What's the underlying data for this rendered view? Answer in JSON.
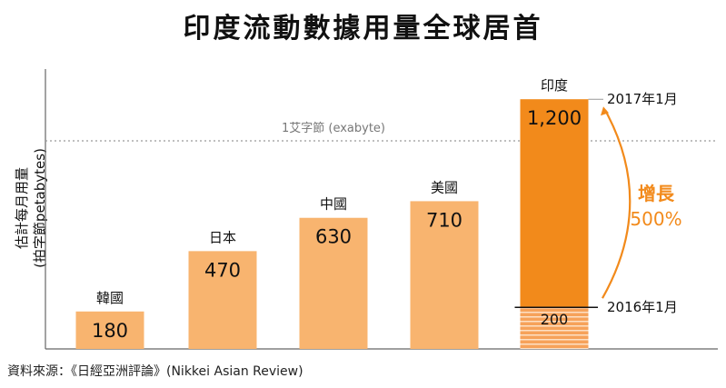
{
  "chart_data": {
    "type": "bar",
    "title": "印度流動數據用量全球居首",
    "ylabel_line1": "估計每月用量",
    "ylabel_line2": "(拍字節petabytes)",
    "xlabel": "",
    "categories": [
      "韓國",
      "日本",
      "中國",
      "美國",
      "印度"
    ],
    "values": [
      180,
      470,
      630,
      710,
      1200
    ],
    "value_labels": [
      "180",
      "470",
      "630",
      "710",
      "1,200"
    ],
    "ylim": [
      0,
      1400
    ],
    "reference_line": {
      "value": 1000,
      "label": "1艾字節 (exabyte)"
    },
    "india_comparison": {
      "baseline_value": 200,
      "baseline_label": "200",
      "baseline_date": "2016年1月",
      "current_date": "2017年1月",
      "growth_label": "增長",
      "growth_pct": "500%"
    },
    "colors": {
      "bar": "#f8b46f",
      "highlight": "#f28a1b",
      "reference_line": "#999999",
      "arrow": "#f28a1b",
      "axis": "#666666"
    },
    "source": "資料來源：《日經亞洲評論》(Nikkei Asian Review)"
  }
}
